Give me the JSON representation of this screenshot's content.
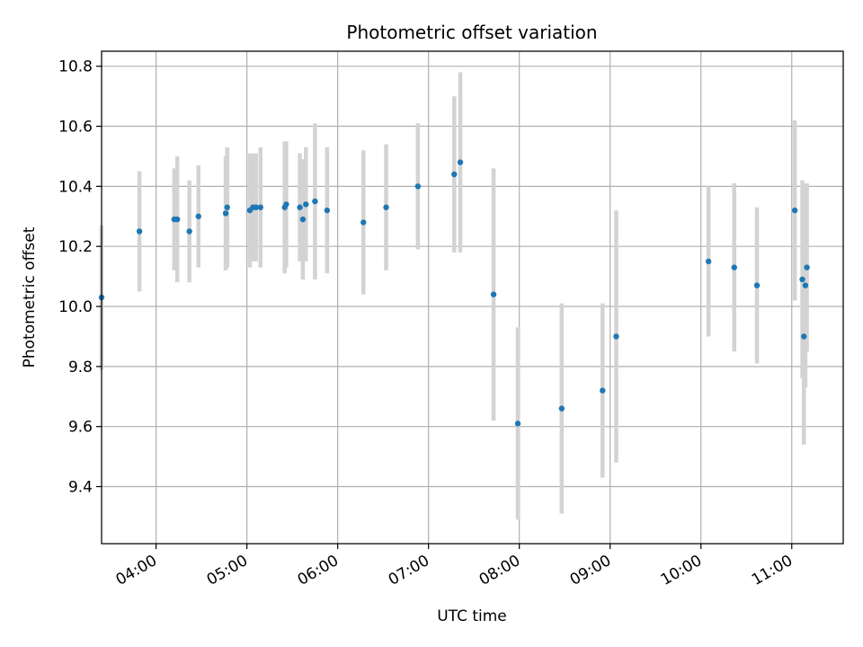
{
  "chart_data": {
    "type": "scatter",
    "title": "Photometric offset variation",
    "xlabel": "UTC time",
    "ylabel": "Photometric offset",
    "x_tick_labels": [
      "04:00",
      "05:00",
      "06:00",
      "07:00",
      "08:00",
      "09:00",
      "10:00",
      "11:00"
    ],
    "y_tick_labels": [
      "9.4",
      "9.6",
      "9.8",
      "10.0",
      "10.2",
      "10.4",
      "10.6",
      "10.8"
    ],
    "xlim": [
      "03:24",
      "11:34"
    ],
    "ylim": [
      9.21,
      10.85
    ],
    "grid": true,
    "colors": {
      "points": "#1f77b4",
      "error_bars": "#d3d3d3",
      "grid": "#b0b0b0"
    },
    "series": [
      {
        "error_bars": "vertical",
        "points": [
          {
            "x": "03:24",
            "y": 10.03,
            "err": 0.24
          },
          {
            "x": "03:49",
            "y": 10.25,
            "err": 0.2
          },
          {
            "x": "04:12",
            "y": 10.29,
            "err": 0.17
          },
          {
            "x": "04:14",
            "y": 10.29,
            "err": 0.21
          },
          {
            "x": "04:22",
            "y": 10.25,
            "err": 0.17
          },
          {
            "x": "04:28",
            "y": 10.3,
            "err": 0.17
          },
          {
            "x": "04:46",
            "y": 10.31,
            "err": 0.19
          },
          {
            "x": "04:47",
            "y": 10.33,
            "err": 0.2
          },
          {
            "x": "05:02",
            "y": 10.32,
            "err": 0.19
          },
          {
            "x": "05:04",
            "y": 10.33,
            "err": 0.18
          },
          {
            "x": "05:06",
            "y": 10.33,
            "err": 0.18
          },
          {
            "x": "05:09",
            "y": 10.33,
            "err": 0.2
          },
          {
            "x": "05:25",
            "y": 10.33,
            "err": 0.22
          },
          {
            "x": "05:26",
            "y": 10.34,
            "err": 0.21
          },
          {
            "x": "05:35",
            "y": 10.33,
            "err": 0.18
          },
          {
            "x": "05:37",
            "y": 10.29,
            "err": 0.2
          },
          {
            "x": "05:39",
            "y": 10.34,
            "err": 0.19
          },
          {
            "x": "05:45",
            "y": 10.35,
            "err": 0.26
          },
          {
            "x": "05:53",
            "y": 10.32,
            "err": 0.21
          },
          {
            "x": "06:17",
            "y": 10.28,
            "err": 0.24
          },
          {
            "x": "06:32",
            "y": 10.33,
            "err": 0.21
          },
          {
            "x": "06:53",
            "y": 10.4,
            "err": 0.21
          },
          {
            "x": "07:17",
            "y": 10.44,
            "err": 0.26
          },
          {
            "x": "07:21",
            "y": 10.48,
            "err": 0.3
          },
          {
            "x": "07:43",
            "y": 10.04,
            "err": 0.42
          },
          {
            "x": "07:59",
            "y": 9.61,
            "err": 0.32
          },
          {
            "x": "08:28",
            "y": 9.66,
            "err": 0.35
          },
          {
            "x": "08:55",
            "y": 9.72,
            "err": 0.29
          },
          {
            "x": "09:04",
            "y": 9.9,
            "err": 0.42
          },
          {
            "x": "10:05",
            "y": 10.15,
            "err": 0.25
          },
          {
            "x": "10:22",
            "y": 10.13,
            "err": 0.28
          },
          {
            "x": "10:37",
            "y": 10.07,
            "err": 0.26
          },
          {
            "x": "11:02",
            "y": 10.32,
            "err": 0.3
          },
          {
            "x": "11:07",
            "y": 10.09,
            "err": 0.33
          },
          {
            "x": "11:08",
            "y": 9.9,
            "err": 0.36
          },
          {
            "x": "11:09",
            "y": 10.07,
            "err": 0.34
          },
          {
            "x": "11:10",
            "y": 10.13,
            "err": 0.28
          }
        ]
      }
    ]
  }
}
